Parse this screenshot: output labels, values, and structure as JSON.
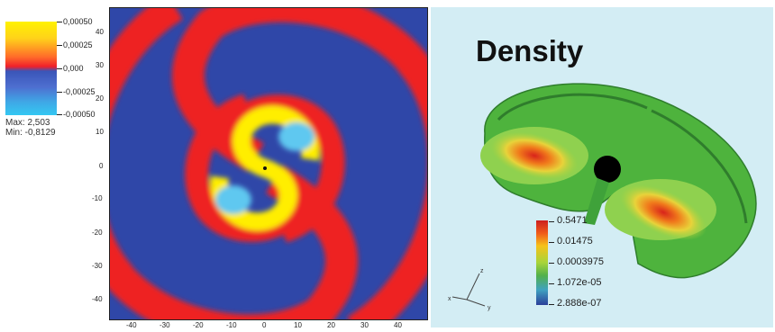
{
  "left_colorbar": {
    "ticks": [
      "0,00050",
      "0,00025",
      "0,000",
      "-0,00025",
      "-0,00050"
    ],
    "max_label": "Max: 2,503",
    "min_label": "Min: -0,8129"
  },
  "spiral_plot": {
    "y_ticks": [
      "40",
      "30",
      "20",
      "10",
      "0",
      "-10",
      "-20",
      "-30",
      "-40"
    ],
    "x_ticks": [
      "-40",
      "-30",
      "-20",
      "-10",
      "0",
      "10",
      "20",
      "30",
      "40"
    ]
  },
  "density_panel": {
    "title": "Density",
    "colorbar_ticks": [
      "0.5471",
      "0.01475",
      "0.0003975",
      "1.072e-05",
      "2.888e-07"
    ],
    "axes_letters": [
      "z",
      "x",
      "y"
    ]
  },
  "colors": {
    "spiral_blue": "#2f47a8",
    "spiral_red": "#ee2020",
    "spiral_yellow": "#ffee00",
    "spiral_cyan": "#5ec8f0",
    "density_bg": "#d3edf4",
    "density_green": "#4eb33d"
  }
}
